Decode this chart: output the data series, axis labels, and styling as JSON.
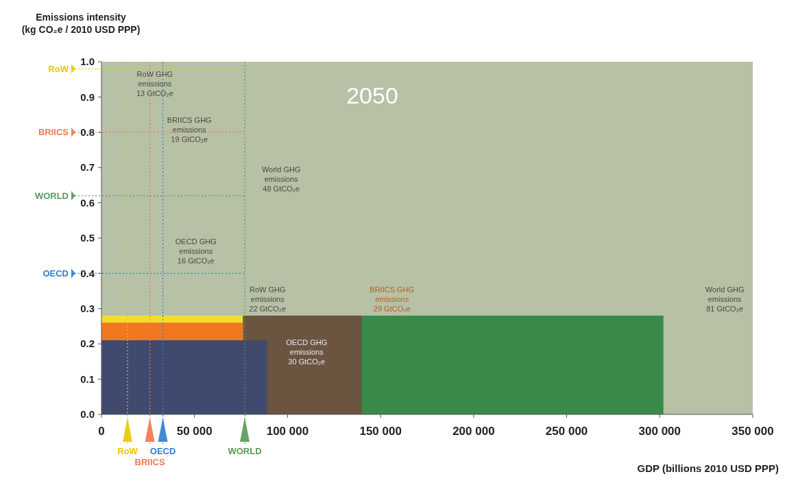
{
  "chart_data": {
    "type": "area",
    "title": "2050",
    "xlabel": "GDP (billions 2010 USD PPP)",
    "ylabel": "Emissions intensity (kg CO₂e / 2010 USD PPP)",
    "xlim": [
      0,
      350000
    ],
    "ylim": [
      0,
      1
    ],
    "xticks": [
      0,
      {
        "value": 50000,
        "label": "50 000"
      },
      {
        "value": 100000,
        "label": "100 000"
      },
      {
        "value": 150000,
        "label": "150 000"
      },
      {
        "value": 200000,
        "label": "200 000"
      },
      {
        "value": 250000,
        "label": "250 000"
      },
      {
        "value": 300000,
        "label": "300 000"
      },
      {
        "value": 350000,
        "label": "350 000"
      }
    ],
    "yticks": [
      {
        "value": 0,
        "label": "0.0"
      },
      0.1,
      0.2,
      0.3,
      0.4,
      0.5,
      0.6,
      0.7,
      0.8,
      0.9,
      {
        "value": 1,
        "label": "1.0"
      }
    ],
    "series": [
      {
        "color": "#3a8a4a",
        "x": [
          0,
          302000
        ],
        "values": [
          0.28,
          0.28
        ]
      },
      {
        "color": "#6b5540",
        "x": [
          0,
          140000
        ],
        "values": [
          0.28,
          0.28
        ]
      },
      {
        "color": "#f2dc30",
        "x": [
          0,
          76000
        ],
        "values": [
          0.28,
          0.28
        ]
      },
      {
        "color": "#f07820",
        "x": [
          0,
          76000
        ],
        "values": [
          0.26,
          0.26
        ]
      },
      {
        "color": "#3f4a6e",
        "x": [
          0,
          89000
        ],
        "values": [
          0.21,
          0.21
        ]
      }
    ],
    "ref_lines": [
      {
        "axis": "y",
        "value": 0.98,
        "label": "RoW",
        "color": "#e8c800"
      },
      {
        "axis": "y",
        "value": 0.8,
        "label": "BRIICS",
        "color": "#f07850"
      },
      {
        "axis": "y",
        "value": 0.62,
        "label": "WORLD",
        "color": "#5a9a5a"
      },
      {
        "axis": "y",
        "value": 0.4,
        "label": "OECD",
        "color": "#2f7fd0"
      },
      {
        "axis": "x",
        "value": 14000,
        "label": "RoW",
        "color": "#e8c800"
      },
      {
        "axis": "x",
        "value": 26000,
        "label": "BRIICS",
        "color": "#f07850"
      },
      {
        "axis": "x",
        "value": 33000,
        "label": "OECD",
        "color": "#2f7fd0"
      },
      {
        "axis": "x",
        "value": 77000,
        "label": "WORLD",
        "color": "#5a9a5a"
      }
    ],
    "line_style": "dotted",
    "annotations": [
      "RoW GHG emissions 13 GtCO₂e",
      "BRIICS GHG emissions 19 GtCO₂e",
      "World GHG emissions 48 GtCO₂e",
      "OECD GHG emissions 16 GtCO₂e",
      "RoW GHG emissions 22 GtCO₂e",
      "BRIICS GHG emissions 29 GtCO₂e",
      "OECD GHG emissions 30 GtCO₂e",
      "World GHG emissions 81 GtCO₂e"
    ]
  }
}
